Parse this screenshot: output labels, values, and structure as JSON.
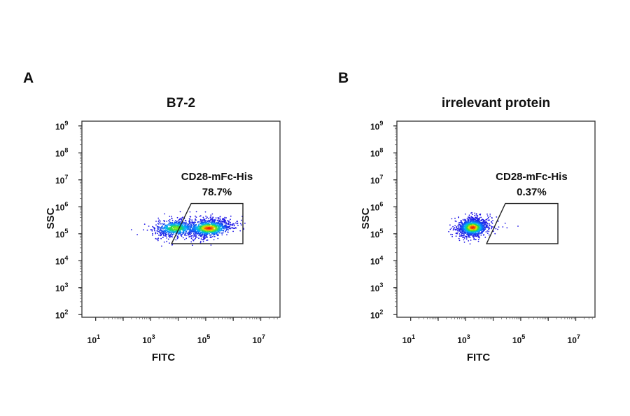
{
  "chart_data": [
    {
      "type": "scatter",
      "panel_label": "A",
      "title": "B7-2",
      "xlabel": "FITC",
      "ylabel": "SSC",
      "x_scale": "log",
      "y_scale": "log",
      "xlim": [
        3.16,
        50000000
      ],
      "ylim": [
        80,
        1500000000
      ],
      "x_tick_labels": [
        "10^1",
        "10^3",
        "10^5",
        "10^7"
      ],
      "y_tick_labels": [
        "10^2",
        "10^3",
        "10^4",
        "10^5",
        "10^6",
        "10^7",
        "10^8",
        "10^9"
      ],
      "grid": false,
      "colormap": "density (blue-cyan-green-yellow-red)",
      "gate": {
        "name": "CD28-mFc-His",
        "percent": "78.7%",
        "vertices": [
          [
            29500,
            1320000
          ],
          [
            2240000,
            1320000
          ],
          [
            2240000,
            43000
          ],
          [
            5750,
            43000
          ]
        ]
      },
      "populations": [
        {
          "center": [
            8000,
            160000
          ],
          "weight": 0.4
        },
        {
          "center": [
            130000,
            160000
          ],
          "weight": 0.6
        }
      ]
    },
    {
      "type": "scatter",
      "panel_label": "B",
      "title": "irrelevant protein",
      "xlabel": "FITC",
      "ylabel": "SSC",
      "x_scale": "log",
      "y_scale": "log",
      "xlim": [
        3.16,
        50000000
      ],
      "ylim": [
        80,
        1500000000
      ],
      "x_tick_labels": [
        "10^1",
        "10^3",
        "10^5",
        "10^7"
      ],
      "y_tick_labels": [
        "10^2",
        "10^3",
        "10^4",
        "10^5",
        "10^6",
        "10^7",
        "10^8",
        "10^9"
      ],
      "grid": false,
      "colormap": "density (blue-cyan-green-yellow-red)",
      "gate": {
        "name": "CD28-mFc-His",
        "percent": "0.37%",
        "vertices": [
          [
            27500,
            1320000
          ],
          [
            2240000,
            1320000
          ],
          [
            2240000,
            43000
          ],
          [
            5750,
            43000
          ]
        ]
      },
      "populations": [
        {
          "center": [
            1800,
            170000
          ],
          "weight": 1.0
        }
      ]
    }
  ]
}
